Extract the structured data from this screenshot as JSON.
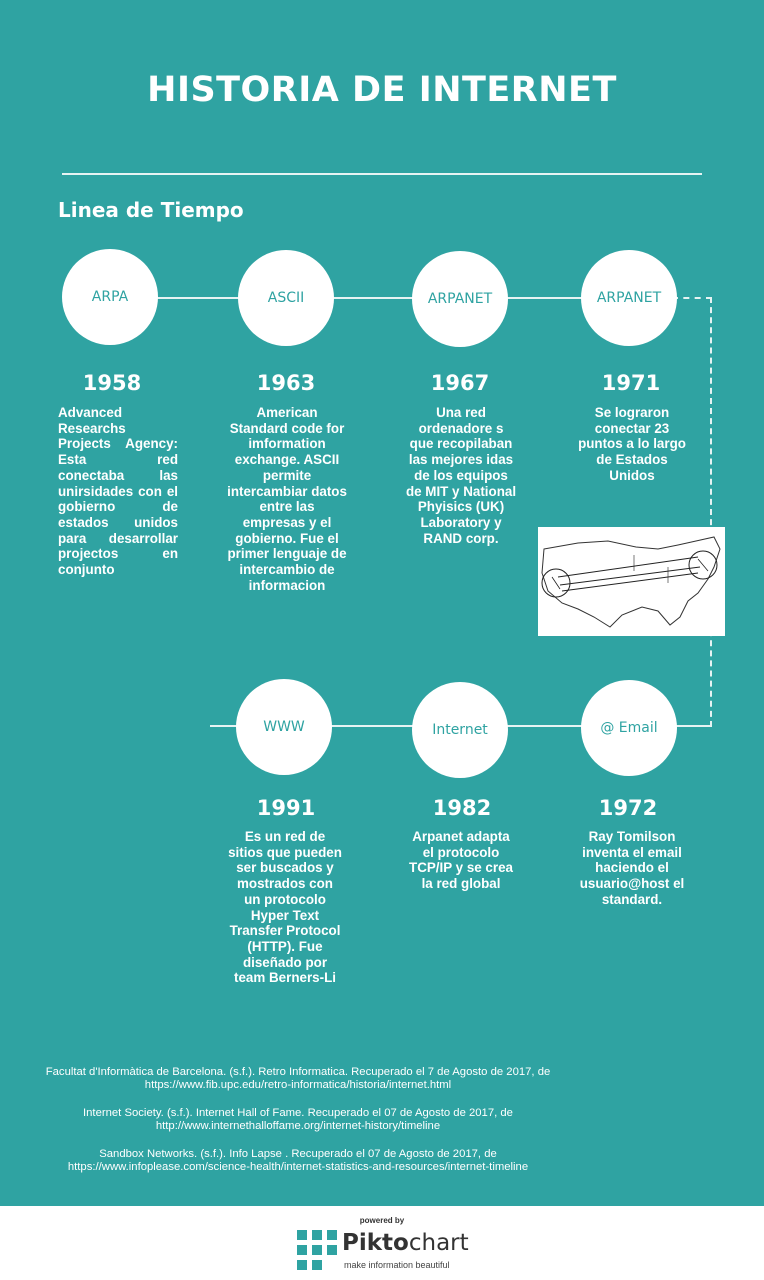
{
  "title": "HISTORIA DE INTERNET",
  "section_title": "Linea de Tiempo",
  "events": [
    {
      "label": "ARPA",
      "year": "1958",
      "desc": "Advanced Researchs Projects Agency: Esta red conectaba las unirsidades con el gobierno de estados unidos para desarrollar projectos en conjunto"
    },
    {
      "label": "ASCII",
      "year": "1963",
      "desc": "American Standard code for imformation exchange. ASCII permite intercambiar datos entre las empresas y el gobierno. Fue el primer lenguaje de intercambio de informacion"
    },
    {
      "label": "ARPANET",
      "year": "1967",
      "desc": "Una red ordenadore s que recopilaban las mejores idas de los equipos de MIT y National Phyisics (UK) Laboratory y RAND corp."
    },
    {
      "label": "ARPANET",
      "year": "1971",
      "desc": "Se lograron conectar 23 puntos a lo largo de Estados Unidos"
    },
    {
      "label": "@ Email",
      "year": "1972",
      "desc": "Ray Tomilson inventa el email haciendo el usuario@host el standard."
    },
    {
      "label": "Internet",
      "year": "1982",
      "desc": "Arpanet adapta el protocolo TCP/IP y se crea la red global"
    },
    {
      "label": "WWW",
      "year": "1991",
      "desc": "Es un red de sitios que pueden ser buscados y mostrados con un protocolo Hyper Text Transfer Protocol (HTTP). Fue diseñado por team Berners-Li"
    }
  ],
  "references": [
    {
      "line1": "Facultat d'Informàtica de Barcelona. (s.f.). Retro Informatica. Recuperado el 7 de Agosto de 2017, de",
      "line2": "https://www.fib.upc.edu/retro-informatica/historia/internet.html"
    },
    {
      "line1": "Internet Society. (s.f.). Internet Hall of Fame. Recuperado el 07 de Agosto de 2017, de",
      "line2": "http://www.internethalloffame.org/internet-history/timeline"
    },
    {
      "line1": "Sandbox Networks. (s.f.). Info Lapse . Recuperado el 07 de Agosto de 2017, de",
      "line2": "https://www.infoplease.com/science-health/internet-statistics-and-resources/internet-timeline"
    }
  ],
  "footer": {
    "powered_by": "powered by",
    "brand_bold": "Pikto",
    "brand_rest": "chart",
    "tagline": "make information beautiful"
  },
  "colors": {
    "background": "#2fa3a2",
    "accent": "#2fa3a2",
    "text": "#ffffff"
  }
}
